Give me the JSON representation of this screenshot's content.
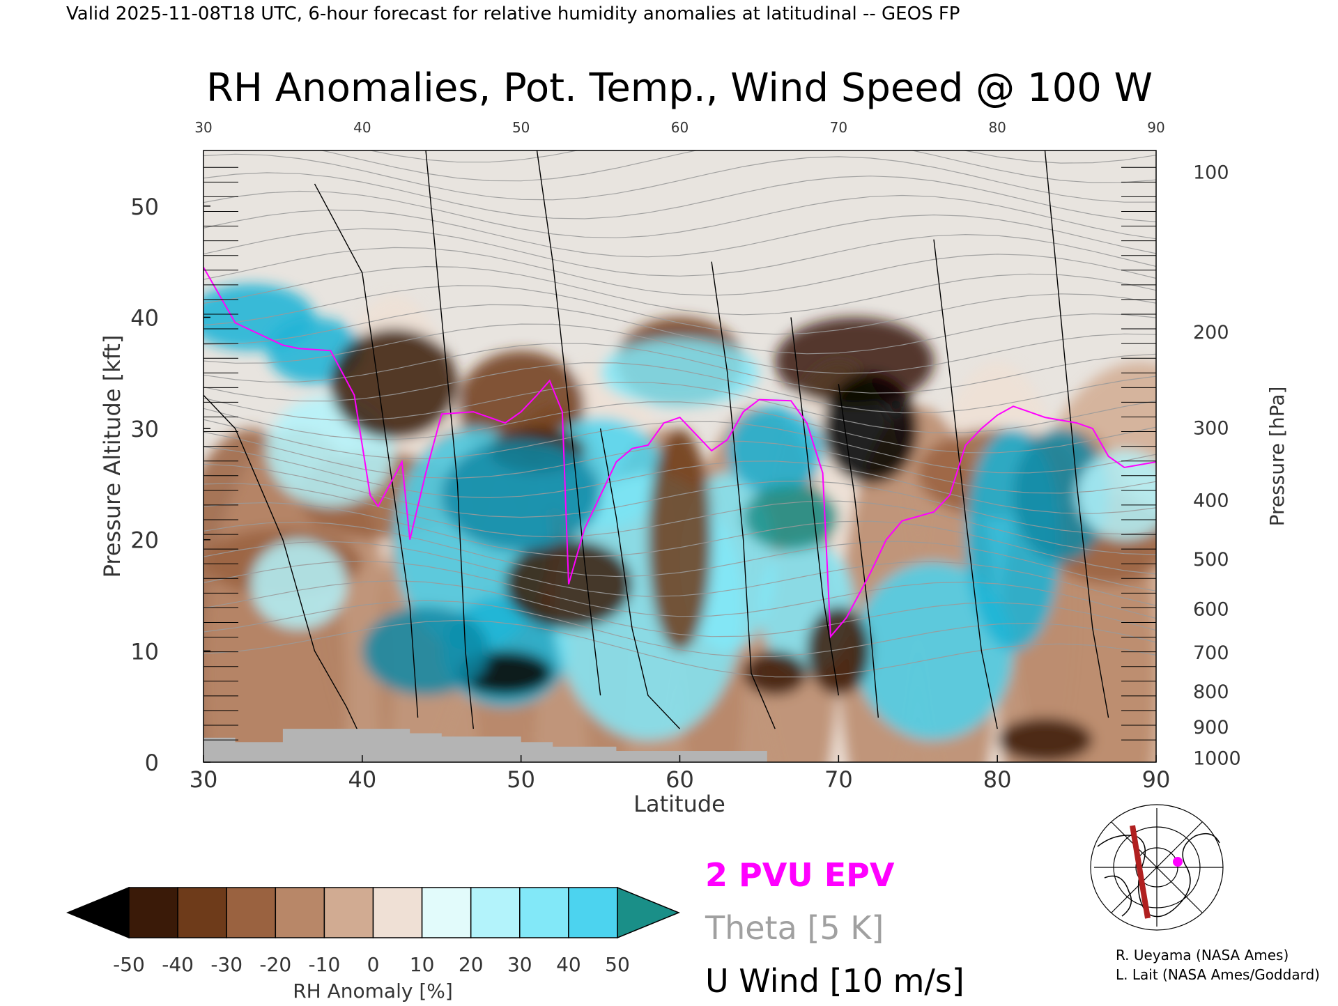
{
  "header": {
    "valid_line": "Valid 2025-11-08T18 UTC, 6-hour forecast for relative humidity anomalies at latitudinal -- GEOS FP",
    "title": "RH Anomalies, Pot. Temp., Wind Speed @ 100 W"
  },
  "chart_data": {
    "type": "heatmap",
    "title": "RH Anomalies, Pot. Temp., Wind Speed @ 100 W",
    "xlabel": "Latitude",
    "ylabel": "Pressure Altitude [kft]",
    "ylabel_right": "Pressure [hPa]",
    "xlim": [
      30,
      90
    ],
    "ylim": [
      0,
      55
    ],
    "x_ticks": [
      30,
      40,
      50,
      60,
      70,
      80,
      90
    ],
    "y_ticks": [
      0,
      10,
      20,
      30,
      40,
      50
    ],
    "pressure_ticks": [
      {
        "hpa": "100",
        "kft": 53.1
      },
      {
        "hpa": "200",
        "kft": 38.7
      },
      {
        "hpa": "300",
        "kft": 30.1
      },
      {
        "hpa": "400",
        "kft": 23.6
      },
      {
        "hpa": "500",
        "kft": 18.3
      },
      {
        "hpa": "600",
        "kft": 13.8
      },
      {
        "hpa": "700",
        "kft": 9.9
      },
      {
        "hpa": "800",
        "kft": 6.4
      },
      {
        "hpa": "900",
        "kft": 3.2
      },
      {
        "hpa": "1000",
        "kft": 0.4
      }
    ],
    "grid": false,
    "colorbar": {
      "label": "RH Anomaly [%]",
      "ticks": [
        "-50",
        "-40",
        "-30",
        "-20",
        "-10",
        "0",
        "10",
        "20",
        "30",
        "40",
        "50"
      ],
      "colors": [
        "#000000",
        "#3a1a08",
        "#6e3b1a",
        "#9a6240",
        "#b88768",
        "#d1ab92",
        "#efe0d5",
        "#e2fbfb",
        "#b3f3fb",
        "#82e8f8",
        "#4cd3ef",
        "#1ab3d6",
        "#0f8aa6",
        "#1a8f88"
      ]
    },
    "legend": {
      "epv": "2 PVU EPV",
      "theta": "Theta [5 K]",
      "wind": "U Wind [10 m/s]",
      "epv_color": "#ff00ff",
      "theta_color": "#a0a0a0",
      "wind_color": "#000000"
    },
    "tropopause_2pvu": [
      {
        "x": 30,
        "y": 44.5
      },
      {
        "x": 32,
        "y": 39.5
      },
      {
        "x": 33.5,
        "y": 38.5
      },
      {
        "x": 35,
        "y": 37.5
      },
      {
        "x": 36,
        "y": 37.2
      },
      {
        "x": 38,
        "y": 37.0
      },
      {
        "x": 39.5,
        "y": 33
      },
      {
        "x": 40.5,
        "y": 24
      },
      {
        "x": 41,
        "y": 23
      },
      {
        "x": 42.5,
        "y": 27
      },
      {
        "x": 43,
        "y": 20
      },
      {
        "x": 44,
        "y": 26
      },
      {
        "x": 45,
        "y": 31.3
      },
      {
        "x": 47,
        "y": 31.5
      },
      {
        "x": 48,
        "y": 31
      },
      {
        "x": 49,
        "y": 30.5
      },
      {
        "x": 50,
        "y": 31.5
      },
      {
        "x": 51,
        "y": 33
      },
      {
        "x": 51.8,
        "y": 34.3
      },
      {
        "x": 52.6,
        "y": 31.5
      },
      {
        "x": 53,
        "y": 16
      },
      {
        "x": 54,
        "y": 21
      },
      {
        "x": 55,
        "y": 24
      },
      {
        "x": 56,
        "y": 27
      },
      {
        "x": 57,
        "y": 28.2
      },
      {
        "x": 58,
        "y": 28.5
      },
      {
        "x": 59,
        "y": 30.5
      },
      {
        "x": 60,
        "y": 31
      },
      {
        "x": 61,
        "y": 29.5
      },
      {
        "x": 62,
        "y": 28
      },
      {
        "x": 63,
        "y": 29
      },
      {
        "x": 64,
        "y": 31.5
      },
      {
        "x": 65,
        "y": 32.6
      },
      {
        "x": 67,
        "y": 32.5
      },
      {
        "x": 68,
        "y": 30.5
      },
      {
        "x": 69,
        "y": 26
      },
      {
        "x": 69.5,
        "y": 11.3
      },
      {
        "x": 70.5,
        "y": 13
      },
      {
        "x": 72,
        "y": 17
      },
      {
        "x": 73,
        "y": 20
      },
      {
        "x": 74,
        "y": 21.7
      },
      {
        "x": 76,
        "y": 22.5
      },
      {
        "x": 77,
        "y": 24
      },
      {
        "x": 78,
        "y": 28.5
      },
      {
        "x": 79,
        "y": 30
      },
      {
        "x": 80,
        "y": 31.2
      },
      {
        "x": 81,
        "y": 32
      },
      {
        "x": 82,
        "y": 31.5
      },
      {
        "x": 83,
        "y": 31
      },
      {
        "x": 85,
        "y": 30.5
      },
      {
        "x": 86,
        "y": 30
      },
      {
        "x": 87,
        "y": 27.5
      },
      {
        "x": 88,
        "y": 26.5
      },
      {
        "x": 90,
        "y": 27
      }
    ],
    "terrain_kft": [
      {
        "x": 30,
        "y": 2.2
      },
      {
        "x": 32,
        "y": 2.2
      },
      {
        "x": 32,
        "y": 1.8
      },
      {
        "x": 35,
        "y": 1.8
      },
      {
        "x": 35,
        "y": 3.0
      },
      {
        "x": 43,
        "y": 3.0
      },
      {
        "x": 43,
        "y": 2.6
      },
      {
        "x": 45,
        "y": 2.6
      },
      {
        "x": 45,
        "y": 2.3
      },
      {
        "x": 50,
        "y": 2.3
      },
      {
        "x": 50,
        "y": 1.8
      },
      {
        "x": 52,
        "y": 1.8
      },
      {
        "x": 52,
        "y": 1.4
      },
      {
        "x": 56,
        "y": 1.4
      },
      {
        "x": 56,
        "y": 1.0
      },
      {
        "x": 65.5,
        "y": 1.0
      },
      {
        "x": 65.5,
        "y": 0
      },
      {
        "x": 30,
        "y": 0
      }
    ]
  },
  "credits": {
    "line1": "R. Ueyama (NASA Ames)",
    "line2": "L. Lait (NASA Ames/Goddard)"
  }
}
